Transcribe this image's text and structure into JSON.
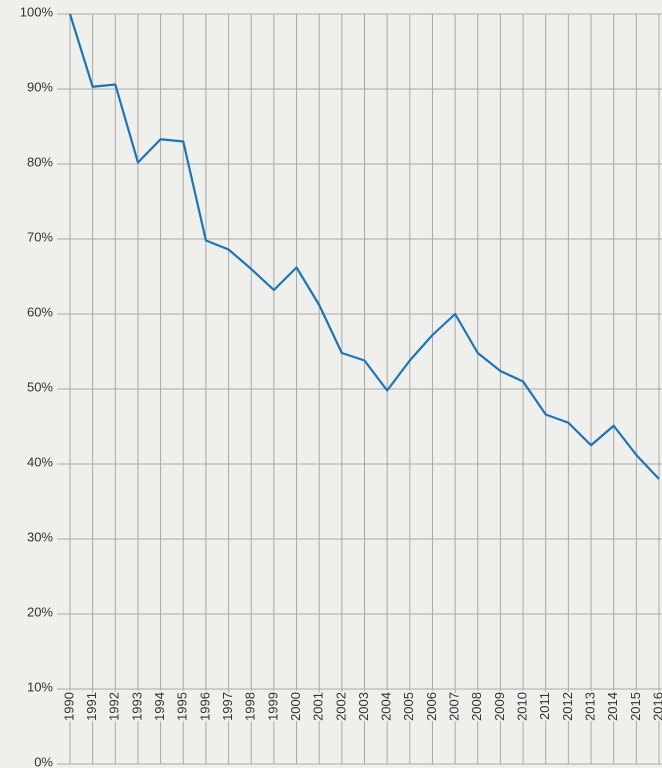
{
  "chart_data": {
    "type": "line",
    "x": [
      1990,
      1991,
      1992,
      1993,
      1994,
      1995,
      1996,
      1997,
      1998,
      1999,
      2000,
      2001,
      2002,
      2003,
      2004,
      2005,
      2006,
      2007,
      2008,
      2009,
      2010,
      2011,
      2012,
      2013,
      2014,
      2015,
      2016
    ],
    "series": [
      {
        "color": "#1a75bb",
        "values": [
          100,
          90.3,
          90.6,
          80.2,
          83.3,
          83.0,
          69.8,
          68.6,
          66.0,
          63.2,
          66.2,
          61.2,
          54.8,
          53.8,
          49.8,
          53.8,
          57.2,
          60.0,
          54.8,
          52.4,
          51.0,
          46.6,
          45.5,
          42.5,
          45.1,
          41.2,
          38.0
        ]
      }
    ],
    "xlim": [
      1990,
      2016
    ],
    "xticks": [
      1990,
      1991,
      1992,
      1993,
      1994,
      1995,
      1996,
      1997,
      1998,
      1999,
      2000,
      2001,
      2002,
      2003,
      2004,
      2005,
      2006,
      2007,
      2008,
      2009,
      2010,
      2011,
      2012,
      2013,
      2014,
      2015,
      2016
    ],
    "ylim": [
      0,
      100
    ],
    "yticks": [
      {
        "value": 0,
        "label": "0%"
      },
      {
        "value": 10,
        "label": "10%"
      },
      {
        "value": 20,
        "label": "20%"
      },
      {
        "value": 30,
        "label": "30%"
      },
      {
        "value": 40,
        "label": "40%"
      },
      {
        "value": 50,
        "label": "50%"
      },
      {
        "value": 60,
        "label": "60%"
      },
      {
        "value": 70,
        "label": "70%"
      },
      {
        "value": 80,
        "label": "80%"
      },
      {
        "value": 90,
        "label": "90%"
      },
      {
        "value": 100,
        "label": "100%"
      }
    ],
    "grid": true
  }
}
